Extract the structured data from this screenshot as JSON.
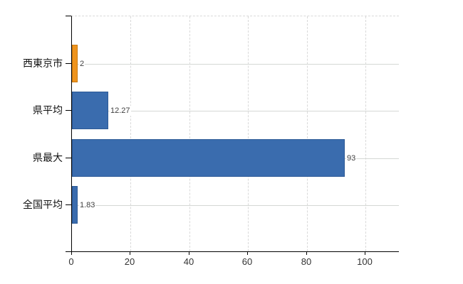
{
  "chart_data": {
    "type": "bar",
    "orientation": "horizontal",
    "title": "",
    "xlabel": "",
    "ylabel": "",
    "categories": [
      "西東京市",
      "県平均",
      "県最大",
      "全国平均"
    ],
    "values": [
      2,
      12.27,
      93,
      1.83
    ],
    "value_labels": [
      "2",
      "12.27",
      "93",
      "1.83"
    ],
    "x_ticks": [
      0,
      20,
      40,
      60,
      80,
      100
    ],
    "xlim": [
      0,
      111.6
    ],
    "legend": "none",
    "grid": {
      "vertical": "dashed",
      "horizontal": "solid",
      "top_border": "dashed"
    },
    "bar_colors": [
      "#ef941d",
      "#3a6cae",
      "#3a6cae",
      "#3a6cae"
    ],
    "bar_border_colors": [
      "#c8790f",
      "#2d5a96",
      "#2d5a96",
      "#2d5a96"
    ]
  },
  "colors": {
    "highlight_bar": "#ef941d",
    "default_bar": "#3a6cae",
    "axis": "#000000",
    "grid": "#d9d9d9",
    "value_label": "#404040",
    "tick_label": "#333333",
    "category_label": "#111111",
    "background": "#ffffff"
  }
}
